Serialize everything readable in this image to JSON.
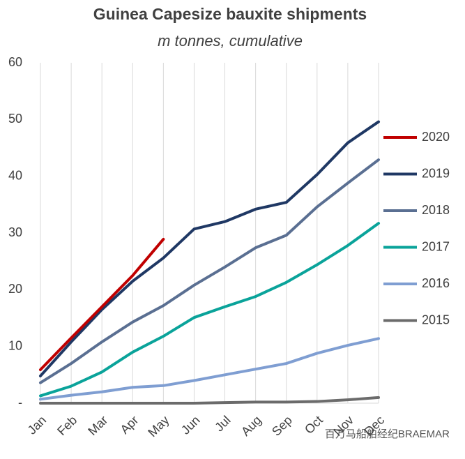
{
  "chart_data": {
    "type": "line",
    "title": "Guinea Capesize bauxite shipments",
    "subtitle": "m tonnes, cumulative",
    "categories": [
      "Jan",
      "Feb",
      "Mar",
      "Apr",
      "May",
      "Jun",
      "Jul",
      "Aug",
      "Sep",
      "Oct",
      "Nov",
      "Dec"
    ],
    "series": [
      {
        "name": "2020",
        "color": "#c00000",
        "values": [
          5.9,
          11.5,
          17,
          22.5,
          28.9,
          null,
          null,
          null,
          null,
          null,
          null,
          null
        ]
      },
      {
        "name": "2019",
        "color": "#1f3864",
        "values": [
          4.8,
          10.8,
          16.5,
          21.5,
          25.6,
          30.7,
          32,
          34.2,
          35.4,
          40.3,
          45.9,
          49.6
        ]
      },
      {
        "name": "2018",
        "color": "#5a6f92",
        "values": [
          3.6,
          7,
          10.8,
          14.3,
          17.2,
          20.8,
          24,
          27.4,
          29.6,
          34.6,
          38.8,
          42.9
        ]
      },
      {
        "name": "2017",
        "color": "#0aa39a",
        "values": [
          1.3,
          3,
          5.5,
          9,
          11.8,
          15.1,
          17,
          18.8,
          21.3,
          24.4,
          27.8,
          31.7
        ]
      },
      {
        "name": "2016",
        "color": "#7f9ed2",
        "values": [
          0.7,
          1.4,
          2,
          2.8,
          3.1,
          4,
          5,
          6,
          7,
          8.8,
          10.2,
          11.4
        ]
      },
      {
        "name": "2015",
        "color": "#6b6b6b",
        "values": [
          0,
          0,
          0,
          0,
          0,
          0,
          0.1,
          0.2,
          0.2,
          0.3,
          0.6,
          1.0
        ]
      }
    ],
    "ylim": [
      0,
      60
    ],
    "yticks": [
      {
        "value": 0,
        "label": "-"
      },
      10,
      20,
      30,
      40,
      50,
      60
    ],
    "grid": "x",
    "legend": "right",
    "watermark": "百万马船舶经纪BRAEMAR"
  }
}
